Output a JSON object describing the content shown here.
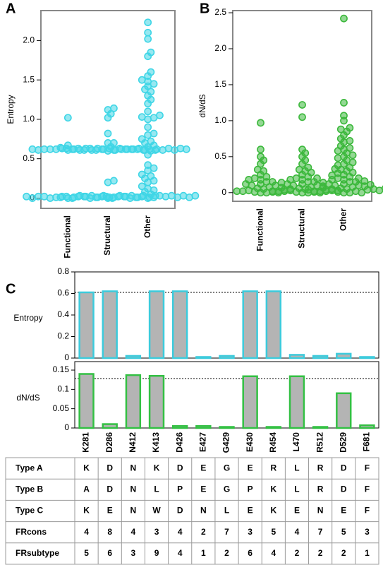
{
  "chart_data": [
    {
      "type": "strip",
      "panel": "A",
      "ylabel": "Entropy",
      "categories": [
        "Functional",
        "Structural",
        "Other"
      ],
      "color": "#3fd6e6",
      "values": [
        [
          0,
          0.01,
          0.02,
          0.03,
          0.01,
          0.02,
          0,
          0.03,
          0.02,
          0.01,
          0.02,
          0.03,
          0,
          0.01,
          0.02,
          0.61,
          0.62,
          0.63,
          0.61,
          0.62,
          0.63,
          0.62,
          0.61,
          0.62,
          0.63,
          0.61,
          0.62,
          0.62,
          0.63,
          0.67,
          1.02
        ],
        [
          0,
          0.01,
          0.02,
          0.03,
          0.01,
          0.02,
          0,
          0.03,
          0.02,
          0.01,
          0.02,
          0.03,
          0,
          0.01,
          0.02,
          0.03,
          0.01,
          0.2,
          0.22,
          0.6,
          0.61,
          0.62,
          0.63,
          0.61,
          0.62,
          0.63,
          0.62,
          0.61,
          0.62,
          0.63,
          0.61,
          0.62,
          0.62,
          0.63,
          0.61,
          0.64,
          0.65,
          0.7,
          0.7,
          0.82,
          1.02,
          1.07,
          1.12,
          1.14
        ],
        [
          0,
          0.01,
          0.02,
          0.03,
          0.01,
          0.02,
          0,
          0.03,
          0.02,
          0.01,
          0.02,
          0.03,
          0,
          0.01,
          0.02,
          0.03,
          0.05,
          0.08,
          0.1,
          0.12,
          0.15,
          0.2,
          0.22,
          0.25,
          0.28,
          0.3,
          0.35,
          0.38,
          0.42,
          0.55,
          0.6,
          0.61,
          0.62,
          0.63,
          0.61,
          0.62,
          0.63,
          0.62,
          0.61,
          0.62,
          0.63,
          0.61,
          0.62,
          0.65,
          0.67,
          0.7,
          0.72,
          0.75,
          0.8,
          0.82,
          0.9,
          1,
          1.02,
          1.03,
          1.05,
          1.1,
          1.2,
          1.25,
          1.3,
          1.35,
          1.38,
          1.42,
          1.45,
          1.48,
          1.5,
          1.55,
          1.6,
          1.8,
          1.85,
          2.02,
          2.1,
          2.23
        ]
      ],
      "ylim": [
        -0.13,
        2.38
      ],
      "yticks": [
        0,
        0.5,
        {
          "value": 1,
          "label": "1.0"
        },
        1.5,
        {
          "value": 2,
          "label": "2.0"
        }
      ]
    },
    {
      "type": "strip",
      "panel": "B",
      "ylabel": "dN/dS",
      "categories": [
        "Functional",
        "Structural",
        "Other"
      ],
      "color": "#3cb83c",
      "values": [
        [
          0,
          0,
          0.01,
          0.02,
          0.03,
          0.05,
          0,
          0.02,
          0.04,
          0.06,
          0.08,
          0.1,
          0.12,
          0.15,
          0.18,
          0.2,
          0.22,
          0.02,
          0.05,
          0.1,
          0.12,
          0.15,
          0.18,
          0.25,
          0.3,
          0.32,
          0.4,
          0.45,
          0.5,
          0.6,
          0.97
        ],
        [
          0,
          0,
          0.01,
          0.02,
          0.03,
          0.05,
          0,
          0.02,
          0.04,
          0.06,
          0.08,
          0.1,
          0.12,
          0.15,
          0.18,
          0.2,
          0.22,
          0.02,
          0.05,
          0.1,
          0.12,
          0.15,
          0.18,
          0.25,
          0.3,
          0.32,
          0.35,
          0.4,
          0.45,
          0.5,
          0.55,
          0.6,
          0.01,
          0.03,
          0.07,
          0.09,
          0.14,
          0.2,
          0.28,
          1.05,
          1.22
        ],
        [
          0,
          0,
          0.01,
          0.02,
          0.03,
          0.05,
          0,
          0.02,
          0.04,
          0.06,
          0.08,
          0.1,
          0.12,
          0.15,
          0.18,
          0.2,
          0.22,
          0.02,
          0.05,
          0.1,
          0.12,
          0.15,
          0.18,
          0.25,
          0.3,
          0.32,
          0.35,
          0.4,
          0.45,
          0.5,
          0.55,
          0.6,
          0.01,
          0.03,
          0.07,
          0.09,
          0.14,
          0.2,
          0.28,
          0.33,
          0.38,
          0.42,
          0.48,
          0.52,
          0.58,
          0.62,
          0.65,
          0.7,
          0.72,
          0.75,
          0.8,
          0.85,
          0.88,
          0.9,
          0.04,
          0.06,
          0.11,
          0.16,
          0.24,
          0.27,
          1,
          1.07,
          1.25,
          2.42
        ]
      ],
      "ylim": [
        -0.12,
        2.53
      ],
      "yticks": [
        0,
        0.5,
        {
          "value": 1,
          "label": "1.0"
        },
        1.5,
        {
          "value": 2,
          "label": "2.0"
        },
        2.5
      ]
    },
    {
      "type": "bar",
      "panel": "C",
      "ylabel": "Entropy",
      "color": "#3ccbdc",
      "fill": "#b4b4b4",
      "categories": [
        "K281",
        "D286",
        "N412",
        "K413",
        "D426",
        "E427",
        "G429",
        "E430",
        "R454",
        "L470",
        "R512",
        "D529",
        "F681"
      ],
      "values": [
        0.61,
        0.62,
        0.02,
        0.62,
        0.62,
        0.01,
        0.02,
        0.62,
        0.62,
        0.03,
        0.02,
        0.04,
        0.01
      ],
      "threshold": 0.61,
      "ylim": [
        0,
        0.8
      ],
      "yticks": [
        0,
        0.2,
        0.4,
        0.6,
        0.8
      ]
    },
    {
      "type": "bar",
      "ylabel": "dN/dS",
      "color": "#33c043",
      "fill": "#b4b4b4",
      "categories": [
        "K281",
        "D286",
        "N412",
        "K413",
        "D426",
        "E427",
        "G429",
        "E430",
        "R454",
        "L470",
        "R512",
        "D529",
        "F681"
      ],
      "values": [
        0.14,
        0.01,
        0.137,
        0.135,
        0.005,
        0.005,
        0.002,
        0.134,
        0.002,
        0.134,
        0.002,
        0.09,
        0.007
      ],
      "threshold": 0.128,
      "ylim": [
        0,
        0.172
      ],
      "yticks": [
        0,
        0.05,
        0.1,
        0.15
      ]
    }
  ],
  "table": {
    "rows": [
      [
        "Type A",
        "K",
        "D",
        "N",
        "K",
        "D",
        "E",
        "G",
        "E",
        "R",
        "L",
        "R",
        "D",
        "F"
      ],
      [
        "Type B",
        "A",
        "D",
        "N",
        "L",
        "P",
        "E",
        "G",
        "P",
        "K",
        "L",
        "R",
        "D",
        "F"
      ],
      [
        "Type C",
        "K",
        "E",
        "N",
        "W",
        "D",
        "N",
        "L",
        "E",
        "K",
        "E",
        "N",
        "E",
        "F"
      ],
      [
        "FRcons",
        "4",
        "8",
        "4",
        "3",
        "4",
        "2",
        "7",
        "3",
        "5",
        "4",
        "7",
        "5",
        "3"
      ],
      [
        "FRsubtype",
        "5",
        "6",
        "3",
        "9",
        "4",
        "1",
        "2",
        "6",
        "4",
        "2",
        "2",
        "2",
        "1"
      ]
    ]
  }
}
